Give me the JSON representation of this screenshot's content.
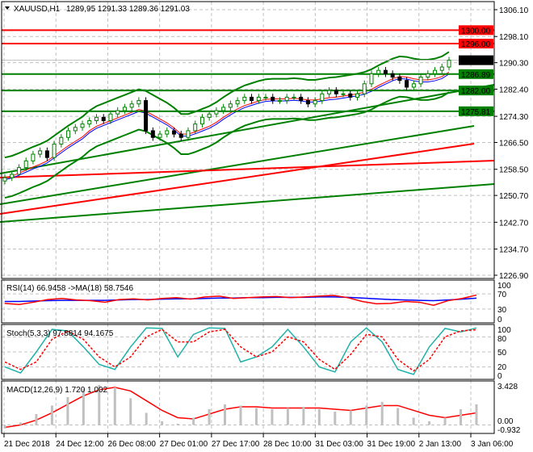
{
  "header": {
    "symbol": "XAUUSD,H1",
    "ohlc": "1289,95 1291.33 1289.36 1291.03"
  },
  "colors": {
    "bull": "#008000",
    "bear": "#000000",
    "support": "#008000",
    "resistance": "#ff0000",
    "price_label": "#000000",
    "rsi": "#ff0000",
    "rsi_ma": "#0000ff",
    "stoch_main": "#20b2aa",
    "stoch_signal": "#ff0000",
    "macd_hist": "#c0c0c0",
    "macd_signal": "#ff0000"
  },
  "chart_data": [
    {
      "type": "line",
      "name_label": "XAUUSD,H1",
      "ylim": [
        1226.9,
        1306.1
      ],
      "yticks": [
        "1306.10",
        "1298.10",
        "1290.30",
        "1282.40",
        "1274.30",
        "1266.50",
        "1258.50",
        "1250.70",
        "1242.70",
        "1234.70",
        "1226.90"
      ],
      "xticks": [
        "21 Dec 2018",
        "24 Dec 12:00",
        "26 Dec 08:00",
        "27 Dec 01:00",
        "27 Dec 17:00",
        "28 Dec 10:00",
        "31 Dec 03:00",
        "31 Dec 19:00",
        "2 Jan 13:00",
        "3 Jan 06:00"
      ],
      "close": [
        1256,
        1257,
        1259,
        1261,
        1263,
        1264,
        1262,
        1266,
        1268,
        1270,
        1271,
        1272,
        1273,
        1274,
        1273,
        1275,
        1276,
        1277,
        1278,
        1279,
        1270,
        1268,
        1269,
        1270,
        1269,
        1268,
        1270,
        1272,
        1274,
        1275,
        1276,
        1277,
        1278,
        1279,
        1280,
        1279,
        1280,
        1280,
        1279,
        1279,
        1280,
        1280,
        1279,
        1278,
        1279,
        1281,
        1282,
        1281,
        1281,
        1280,
        1281,
        1284,
        1287,
        1288,
        1287,
        1286,
        1285,
        1283,
        1284,
        1286,
        1287,
        1288,
        1289,
        1291.03
      ],
      "levels": [
        {
          "value": 1300.0,
          "label": "1300.00",
          "kind": "resistance"
        },
        {
          "value": 1296.0,
          "label": "1296.00",
          "kind": "resistance"
        },
        {
          "value": 1291.03,
          "label": "1291.03",
          "kind": "current"
        },
        {
          "value": 1286.89,
          "label": "1286.89",
          "kind": "support"
        },
        {
          "value": 1282.0,
          "label": "1282.00",
          "kind": "support"
        },
        {
          "value": 1275.81,
          "label": "1275.81",
          "kind": "support"
        }
      ]
    },
    {
      "type": "line",
      "label": "RSI(14) 66.9458   ->MA(18) 58.7546",
      "ylim": [
        0,
        100
      ],
      "yticks": [
        "100",
        "70",
        "30",
        "0"
      ],
      "rsi": [
        45,
        42,
        48,
        55,
        58,
        54,
        52,
        48,
        55,
        57,
        54,
        58,
        60,
        56,
        62,
        64,
        58,
        60,
        62,
        63,
        60,
        62,
        64,
        66,
        60,
        50,
        44,
        45,
        50,
        48,
        40,
        52,
        58,
        66.9
      ],
      "ma": [
        50,
        50,
        51,
        52,
        53,
        53,
        53,
        53,
        54,
        55,
        55,
        56,
        57,
        57,
        58,
        59,
        59,
        60,
        60,
        61,
        61,
        61,
        62,
        62,
        61,
        59,
        57,
        55,
        54,
        53,
        52,
        54,
        56,
        58.8
      ]
    },
    {
      "type": "line",
      "label": "Stoch(5,3,3) 97.8814 94.1675",
      "ylim": [
        0,
        100
      ],
      "yticks": [
        "100",
        "80",
        "50",
        "20",
        "0"
      ],
      "main": [
        20,
        8,
        50,
        95,
        92,
        60,
        25,
        15,
        60,
        98,
        97,
        40,
        85,
        98,
        97,
        30,
        40,
        60,
        95,
        60,
        20,
        10,
        70,
        98,
        70,
        15,
        5,
        60,
        97,
        90,
        97.9
      ],
      "signal": [
        30,
        15,
        30,
        75,
        92,
        75,
        40,
        20,
        40,
        80,
        95,
        70,
        70,
        90,
        95,
        60,
        40,
        50,
        80,
        70,
        35,
        15,
        45,
        85,
        80,
        35,
        12,
        35,
        80,
        92,
        94.2
      ]
    },
    {
      "type": "bar",
      "label": "MACD(12,26,9) 1.720 1.002",
      "ylim": [
        -0.5,
        3.428
      ],
      "yticks": [
        "3.428",
        "0.00",
        "-0.932"
      ],
      "hist": [
        -0.3,
        0.2,
        0.9,
        1.6,
        2.3,
        3.0,
        3.3,
        3.1,
        2.2,
        1.0,
        0.3,
        0.1,
        0.6,
        1.3,
        1.7,
        1.6,
        1.4,
        1.3,
        1.4,
        1.5,
        1.3,
        1.1,
        1.2,
        1.6,
        1.9,
        1.4,
        0.6,
        0.3,
        0.6,
        1.3,
        1.7
      ],
      "signal": [
        -0.2,
        0.0,
        0.4,
        1.0,
        1.7,
        2.4,
        2.9,
        3.1,
        2.8,
        2.0,
        1.2,
        0.6,
        0.5,
        0.9,
        1.3,
        1.5,
        1.5,
        1.4,
        1.4,
        1.4,
        1.4,
        1.3,
        1.2,
        1.4,
        1.6,
        1.6,
        1.2,
        0.8,
        0.6,
        0.8,
        1.0
      ]
    }
  ]
}
